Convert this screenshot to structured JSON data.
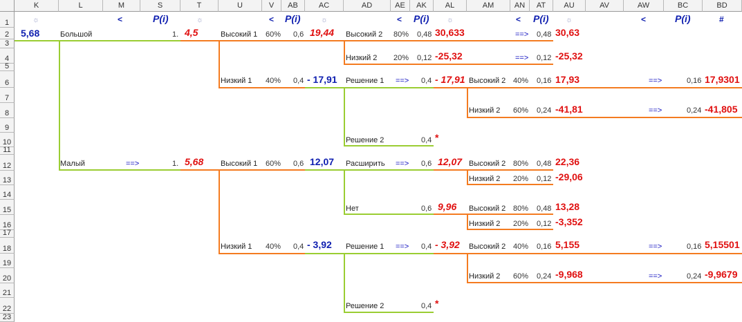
{
  "columns": [
    "K",
    "L",
    "M",
    "S",
    "T",
    "U",
    "V",
    "AB",
    "AC",
    "AD",
    "AE",
    "AK",
    "AL",
    "AM",
    "AN",
    "AT",
    "AU",
    "AV",
    "AW",
    "BC",
    "BD"
  ],
  "rows": [
    "1",
    "2",
    "3",
    "4",
    "5",
    "6",
    "7",
    "8",
    "9",
    "10",
    "11",
    "12",
    "13",
    "14",
    "15",
    "16",
    "17",
    "18",
    "19",
    "20",
    "21",
    "22",
    "23"
  ],
  "colors": {
    "green_line": "#9acd32",
    "orange_line": "#f47b20",
    "value_red": "#e01010",
    "value_blue": "#1020b0"
  },
  "icons": {
    "sun": "sun-icon",
    "arrow": "arrow-right-icon"
  },
  "header_row": {
    "sun": "☼",
    "lt": "<",
    "p": "P(i)",
    "hash": "#"
  },
  "root": {
    "value": "5,68"
  },
  "branches": {
    "big": {
      "label": "Большой",
      "one": "1.",
      "value": "4,5"
    },
    "small": {
      "label": "Малый",
      "arrow": "==>",
      "one": "1.",
      "value": "5,68"
    }
  },
  "u_col": {
    "high1_top": {
      "label": "Высокий 1",
      "pct": "60%",
      "p": "0,6",
      "value": "19,44"
    },
    "low1_top": {
      "label": "Низкий 1",
      "pct": "40%",
      "p": "0,4",
      "value": "- 17,91"
    },
    "high1_mid": {
      "label": "Высокий 1",
      "pct": "60%",
      "p": "0,6",
      "value": "12,07"
    },
    "low1_bot": {
      "label": "Низкий 1",
      "pct": "40%",
      "p": "0,4",
      "value": "- 3,92"
    }
  },
  "ad_col": {
    "high2_r2": {
      "label": "Высокий 2",
      "pct": "80%",
      "p": "0,48",
      "value": "30,633",
      "arrow": "==>",
      "p2": "0,48",
      "value2": "30,63"
    },
    "low2_r4": {
      "label": "Низкий 2",
      "pct": "20%",
      "p": "0,12",
      "value": "-25,32",
      "arrow": "==>",
      "p2": "0,12",
      "value2": "-25,32"
    },
    "dec1_r6": {
      "label": "Решение 1",
      "arrow": "==>",
      "p": "0,4",
      "value": "- 17,91"
    },
    "dec2_r10": {
      "label": "Решение 2",
      "p": "0,4",
      "mark": "*"
    },
    "expand_r12": {
      "label": "Расширить",
      "arrow": "==>",
      "p": "0,6",
      "value": "12,07"
    },
    "no_r15": {
      "label": "Нет",
      "p": "0,6",
      "value": "9,96"
    },
    "dec1_r18": {
      "label": "Решение 1",
      "arrow": "==>",
      "p": "0,4",
      "value": "- 3,92"
    },
    "dec2_r22": {
      "label": "Решение 2",
      "p": "0,4",
      "mark": "*"
    }
  },
  "am_col": {
    "r6": {
      "label": "Высокий 2",
      "pct": "40%",
      "p": "0,16",
      "value": "17,93",
      "arrow": "==>",
      "p2": "0,16",
      "final": "17,9301"
    },
    "r8": {
      "label": "Низкий 2",
      "pct": "60%",
      "p": "0,24",
      "value": "-41,81",
      "arrow": "==>",
      "p2": "0,24",
      "final": "-41,805"
    },
    "r12": {
      "label": "Высокий 2",
      "pct": "80%",
      "p": "0,48",
      "value": "22,36"
    },
    "r13": {
      "label": "Низкий 2",
      "pct": "20%",
      "p": "0,12",
      "value": "-29,06"
    },
    "r15": {
      "label": "Высокий 2",
      "pct": "80%",
      "p": "0,48",
      "value": "13,28"
    },
    "r16": {
      "label": "Низкий 2",
      "pct": "20%",
      "p": "0,12",
      "value": "-3,352"
    },
    "r18": {
      "label": "Высокий 2",
      "pct": "40%",
      "p": "0,16",
      "value": "5,155",
      "arrow": "==>",
      "p2": "0,16",
      "final": "5,15501"
    },
    "r20": {
      "label": "Низкий 2",
      "pct": "60%",
      "p": "0,24",
      "value": "-9,968",
      "arrow": "==>",
      "p2": "0,24",
      "final": "-9,9679"
    }
  }
}
